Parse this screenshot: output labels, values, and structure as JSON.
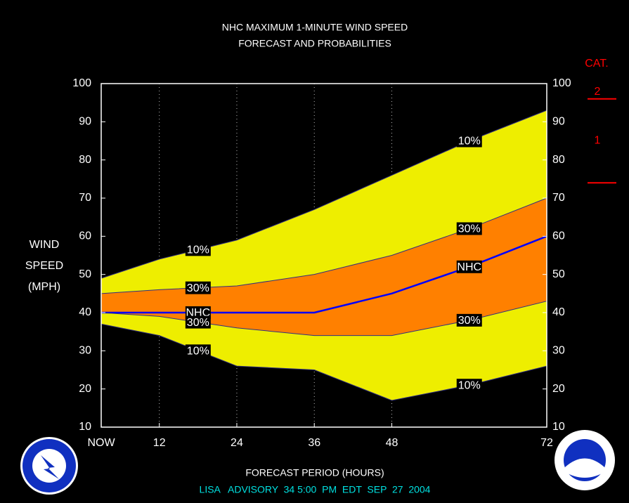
{
  "chart_data": {
    "type": "band",
    "title": "NHC MAXIMUM 1-MINUTE WIND SPEED",
    "subtitle": "FORECAST AND PROBABILITIES",
    "y_label": [
      "WIND",
      "SPEED",
      "(MPH)"
    ],
    "x_label": "FORECAST PERIOD (HOURS)",
    "footer": "LISA   ADVISORY  34 5:00  PM  EDT  SEP  27  2004",
    "x": [
      3,
      12,
      24,
      36,
      48,
      60,
      72
    ],
    "series": [
      {
        "name": "10%",
        "color": "#eeee00",
        "values": [
          49,
          54,
          59,
          67,
          76,
          85,
          93
        ]
      },
      {
        "name": "30%",
        "color": "#ff8000",
        "values": [
          45,
          46,
          47,
          50,
          55,
          62,
          70
        ]
      },
      {
        "name": "NHC",
        "color": "#0000ff",
        "values": [
          40,
          40,
          40,
          40,
          45,
          52,
          60
        ]
      },
      {
        "name": "30%",
        "color": "#ff8000",
        "values": [
          40,
          39,
          36,
          34,
          34,
          38,
          43
        ]
      },
      {
        "name": "10%",
        "color": "#eeee00",
        "values": [
          37,
          34,
          26,
          25,
          17,
          21,
          26
        ]
      }
    ],
    "xlim": [
      3,
      72
    ],
    "xticks": [
      {
        "value": 3,
        "label": "NOW"
      },
      12,
      24,
      36,
      48,
      72
    ],
    "ylim": [
      10,
      100
    ],
    "yticks": [
      10,
      20,
      30,
      40,
      50,
      60,
      70,
      80,
      90,
      100
    ],
    "grid": true,
    "category_scale": {
      "title": "CAT.",
      "color": "#ff0000",
      "thresholds": [
        74,
        96
      ],
      "labels": [
        "1",
        "2"
      ]
    }
  }
}
